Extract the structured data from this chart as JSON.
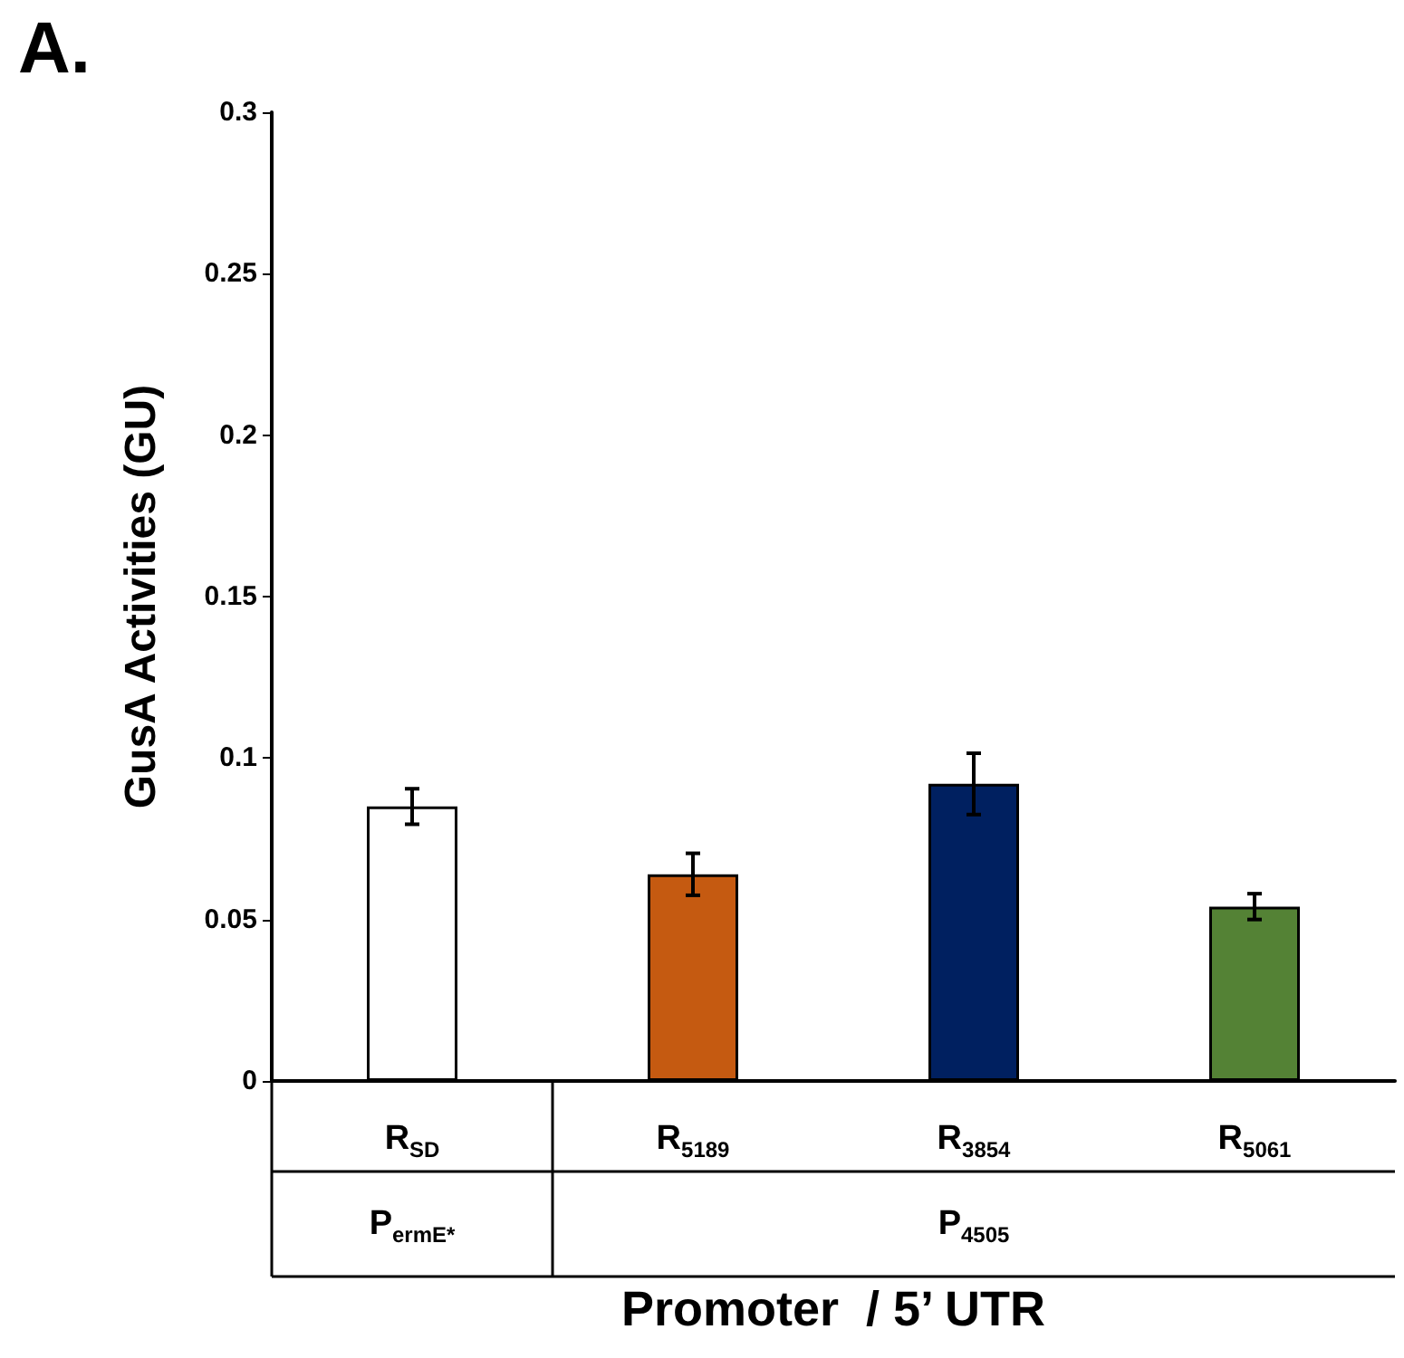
{
  "chart_data": {
    "type": "bar",
    "title": "A.",
    "categories": [
      "R$_{SD}$",
      "R$_{5189}$",
      "R$_{3854}$",
      "R$_{5061}$"
    ],
    "values": [
      0.085,
      0.064,
      0.092,
      0.054
    ],
    "errors": [
      0.0055,
      0.0065,
      0.0095,
      0.004
    ],
    "colors": [
      "#ffffff",
      "#c55a11",
      "#002060",
      "#548235"
    ],
    "ylim": [
      0,
      0.3
    ],
    "yticks": [
      0,
      0.05,
      0.1,
      0.15,
      0.2,
      0.25,
      0.3
    ],
    "ylabel": "GusA Activities (GU)",
    "xlabel": "Promoter  / 5’ UTR",
    "annotations": [
      "P$_{ermE*}$",
      "P$_{4505}$"
    ],
    "grid": false
  }
}
